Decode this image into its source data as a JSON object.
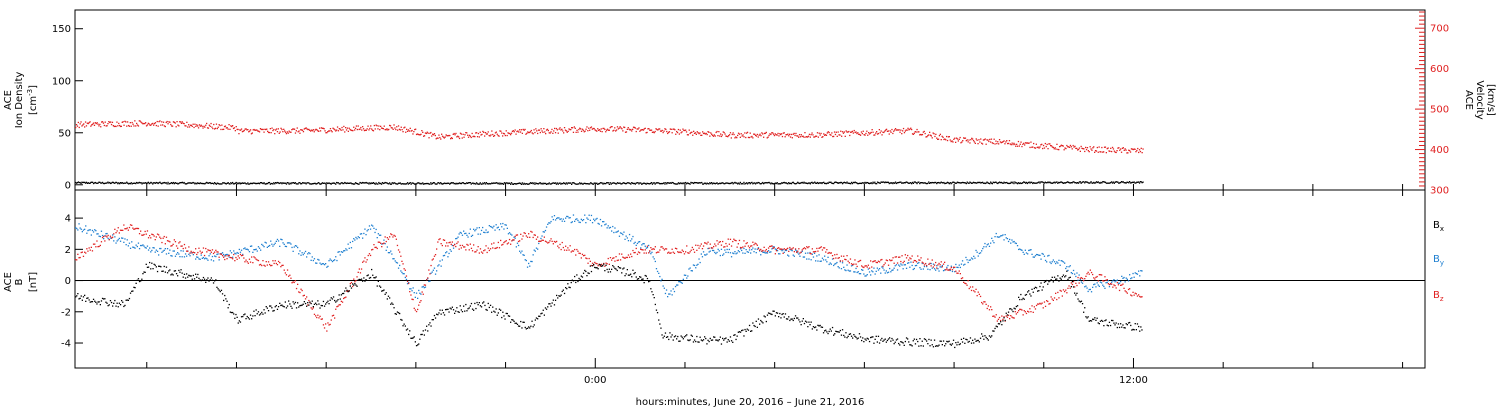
{
  "xaxis_label": "hours:minutes, June 20, 2016 – June 21, 2016",
  "colors": {
    "bx": "#000000",
    "by": "#1e7fd0",
    "bz": "#e02020",
    "density": "#000000",
    "velocity": "#e02020",
    "right_axis": "#e02020"
  },
  "chart_data": [
    {
      "type": "scatter",
      "panel": "top",
      "left_axis": {
        "label_lines": [
          "ACE",
          "Ion Density"
        ],
        "unit_base": "[cm",
        "unit_sup": "-3",
        "unit_tail": "]",
        "ylim": [
          -5,
          168
        ],
        "ticks": [
          0,
          50,
          100,
          150
        ]
      },
      "right_axis": {
        "label_lines": [
          "ACE",
          "Velocity"
        ],
        "unit": "[km/s]",
        "ylim": [
          300,
          745
        ],
        "ticks": [
          300,
          400,
          500,
          600,
          700
        ]
      },
      "x_hours_rel_0000": {
        "xlim": [
          -11.6,
          18.5
        ],
        "ticks": [
          -10,
          -8,
          -6,
          -4,
          -2,
          0,
          2,
          4,
          6,
          8,
          10,
          12,
          14,
          16,
          18
        ],
        "labels": {
          "0": "0:00",
          "12": "12:00"
        }
      },
      "series": [
        {
          "key": "density",
          "axis": "left",
          "x": [
            -11.6,
            -8.0,
            -4.0,
            0.0,
            3.0,
            6.0,
            9.0,
            12.2
          ],
          "y": [
            2.5,
            2.0,
            2.0,
            1.8,
            2.2,
            2.5,
            2.5,
            3.0
          ]
        },
        {
          "key": "velocity",
          "axis": "right",
          "x": [
            -11.6,
            -10.0,
            -9.0,
            -8.0,
            -8.5,
            -6.5,
            -4.5,
            -4.0,
            -3.5,
            -2.5,
            -1.0,
            0.0,
            1.0,
            2.0,
            3.0,
            5.0,
            7.0,
            8.0,
            9.0,
            10.0,
            11.0,
            12.2
          ],
          "y": [
            463,
            467,
            462,
            455,
            447,
            448,
            457,
            445,
            432,
            440,
            448,
            453,
            450,
            445,
            437,
            438,
            448,
            425,
            420,
            410,
            402,
            398
          ]
        }
      ]
    },
    {
      "type": "scatter",
      "panel": "bottom",
      "left_axis": {
        "label_lines": [
          "ACE",
          "B"
        ],
        "unit": "[nT]",
        "ylim": [
          -5.6,
          5.8
        ],
        "ticks": [
          -4,
          -2,
          0,
          2,
          4
        ]
      },
      "x_hours_rel_0000": {
        "xlim": [
          -11.6,
          18.5
        ],
        "ticks": [
          -10,
          -8,
          -6,
          -4,
          -2,
          0,
          2,
          4,
          6,
          8,
          10,
          12,
          14,
          16,
          18
        ],
        "labels": {
          "0": "0:00",
          "12": "12:00"
        }
      },
      "series": [
        {
          "key": "bx",
          "legend_base": "B",
          "legend_sub": "x",
          "x": [
            -11.6,
            -10.5,
            -10.0,
            -8.5,
            -8.0,
            -7.0,
            -6.0,
            -5.0,
            -4.0,
            -3.5,
            -2.5,
            -1.5,
            -0.5,
            0.0,
            0.8,
            1.2,
            1.5,
            2.5,
            3.0,
            4.0,
            5.0,
            6.0,
            7.0,
            8.0,
            8.8,
            9.5,
            10.5,
            11.0,
            12.2
          ],
          "y": [
            -1.0,
            -1.5,
            1.0,
            0.0,
            -2.5,
            -1.5,
            -1.5,
            0.5,
            -4.0,
            -2.0,
            -1.5,
            -3.0,
            0.0,
            1.0,
            0.5,
            0.0,
            -3.5,
            -3.8,
            -3.8,
            -2.0,
            -3.0,
            -3.7,
            -3.9,
            -4.0,
            -3.5,
            -1.0,
            0.5,
            -2.5,
            -3.0
          ]
        },
        {
          "key": "by",
          "legend_base": "B",
          "legend_sub": "y",
          "x": [
            -11.6,
            -10.0,
            -8.5,
            -7.0,
            -6.0,
            -5.0,
            -4.5,
            -4.0,
            -3.0,
            -2.0,
            -1.5,
            -1.0,
            -0.5,
            0.0,
            1.2,
            1.6,
            2.5,
            3.0,
            4.0,
            5.0,
            6.0,
            7.0,
            8.0,
            8.5,
            9.0,
            9.5,
            10.5,
            11.0,
            12.2
          ],
          "y": [
            3.5,
            2.0,
            1.5,
            2.5,
            1.0,
            3.5,
            1.5,
            -1.0,
            3.0,
            3.5,
            1.0,
            4.0,
            4.0,
            4.0,
            2.0,
            -1.0,
            2.0,
            1.8,
            2.0,
            1.5,
            0.5,
            1.0,
            0.8,
            1.8,
            3.0,
            2.0,
            1.0,
            -0.5,
            0.5
          ]
        },
        {
          "key": "bz",
          "legend_base": "B",
          "legend_sub": "z",
          "x": [
            -11.6,
            -10.5,
            -9.0,
            -7.0,
            -6.0,
            -5.0,
            -4.5,
            -4.0,
            -3.5,
            -2.5,
            -1.5,
            -0.5,
            0.0,
            1.0,
            2.0,
            3.0,
            4.0,
            5.0,
            6.0,
            7.0,
            8.0,
            9.0,
            10.0,
            11.0,
            12.2
          ],
          "y": [
            1.5,
            3.5,
            2.0,
            1.0,
            -3.0,
            2.0,
            3.0,
            -2.0,
            2.5,
            2.0,
            3.0,
            2.0,
            1.0,
            2.0,
            2.0,
            2.5,
            2.0,
            2.0,
            1.0,
            1.5,
            0.8,
            -2.5,
            -1.5,
            0.5,
            -1.0
          ]
        }
      ]
    }
  ]
}
